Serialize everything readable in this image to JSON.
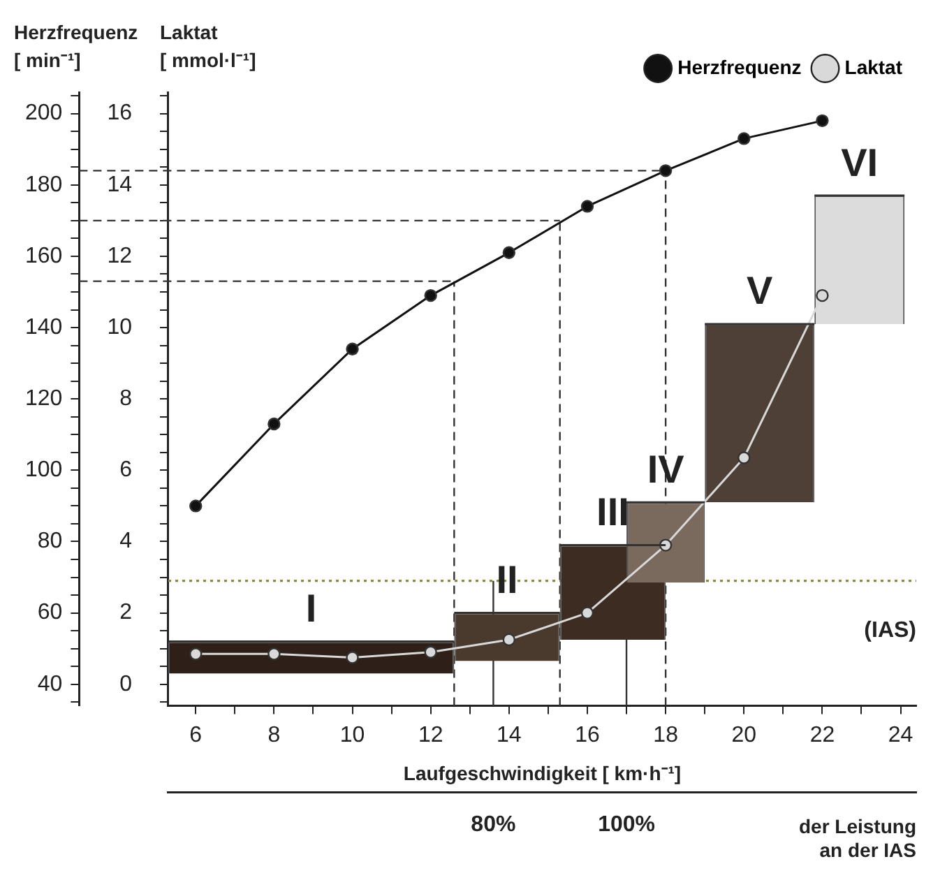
{
  "chart_data": {
    "type": "line",
    "xlabel": "Laufgeschwindigkeit [ km·h⁻¹]",
    "ylabel": "Herzfrequenz\n[ min⁻¹]",
    "y2label": "Laktat\n[ mmol·l⁻¹]",
    "x2label": "der Leistung\nan der IAS",
    "xlim": [
      5.3,
      24.4
    ],
    "ylim": [
      34,
      206
    ],
    "y2lim": [
      -0.6,
      16.6
    ],
    "x2lim": [
      31.2,
      143.5
    ],
    "xticks": [
      6,
      {
        "value": 7,
        "label": null
      },
      8,
      {
        "value": 9,
        "label": null
      },
      10,
      {
        "value": 11,
        "label": null
      },
      12,
      {
        "value": 13,
        "label": null
      },
      14,
      {
        "value": 15,
        "label": null
      },
      16,
      {
        "value": 17,
        "label": null
      },
      18,
      {
        "value": 19,
        "label": null
      },
      20,
      {
        "value": 21,
        "label": null
      },
      22,
      {
        "value": 23,
        "label": null
      },
      24
    ],
    "x2ticks": [
      {
        "value": 80,
        "label": "80%"
      },
      {
        "value": 100,
        "label": "100%"
      }
    ],
    "yticks": [
      {
        "value": 35,
        "label": null
      },
      40,
      {
        "value": 45,
        "label": null
      },
      {
        "value": 50,
        "label": null
      },
      {
        "value": 55,
        "label": null
      },
      60,
      {
        "value": 65,
        "label": null
      },
      {
        "value": 70,
        "label": null
      },
      {
        "value": 75,
        "label": null
      },
      80,
      {
        "value": 85,
        "label": null
      },
      {
        "value": 90,
        "label": null
      },
      {
        "value": 95,
        "label": null
      },
      100,
      {
        "value": 105,
        "label": null
      },
      {
        "value": 110,
        "label": null
      },
      {
        "value": 115,
        "label": null
      },
      120,
      {
        "value": 125,
        "label": null
      },
      {
        "value": 130,
        "label": null
      },
      {
        "value": 135,
        "label": null
      },
      140,
      {
        "value": 145,
        "label": null
      },
      {
        "value": 150,
        "label": null
      },
      {
        "value": 155,
        "label": null
      },
      160,
      {
        "value": 165,
        "label": null
      },
      {
        "value": 170,
        "label": null
      },
      {
        "value": 175,
        "label": null
      },
      180,
      {
        "value": 185,
        "label": null
      },
      {
        "value": 190,
        "label": null
      },
      {
        "value": 195,
        "label": null
      },
      200,
      {
        "value": 205,
        "label": null
      }
    ],
    "y2ticks": [
      {
        "value": -0.5,
        "label": null
      },
      0,
      {
        "value": 0.5,
        "label": null
      },
      {
        "value": 1,
        "label": null
      },
      {
        "value": 1.5,
        "label": null
      },
      2,
      {
        "value": 2.5,
        "label": null
      },
      {
        "value": 3,
        "label": null
      },
      {
        "value": 3.5,
        "label": null
      },
      4,
      {
        "value": 4.5,
        "label": null
      },
      {
        "value": 5,
        "label": null
      },
      {
        "value": 5.5,
        "label": null
      },
      6,
      {
        "value": 6.5,
        "label": null
      },
      {
        "value": 7,
        "label": null
      },
      {
        "value": 7.5,
        "label": null
      },
      8,
      {
        "value": 8.5,
        "label": null
      },
      {
        "value": 9,
        "label": null
      },
      {
        "value": 9.5,
        "label": null
      },
      10,
      {
        "value": 10.5,
        "label": null
      },
      {
        "value": 11,
        "label": null
      },
      {
        "value": 11.5,
        "label": null
      },
      12,
      {
        "value": 12.5,
        "label": null
      },
      {
        "value": 13,
        "label": null
      },
      {
        "value": 13.5,
        "label": null
      },
      14,
      {
        "value": 14.5,
        "label": null
      },
      {
        "value": 15,
        "label": null
      },
      {
        "value": 15.5,
        "label": null
      },
      16,
      {
        "value": 16.5,
        "label": null
      }
    ],
    "series": [
      {
        "type": "bar",
        "axis": "y2",
        "x": [
          8.95,
          13.95,
          16.65,
          18.0,
          20.4,
          22.95
        ],
        "xerrors": [
          3.65,
          1.35,
          1.35,
          1.0,
          1.4,
          1.15
        ],
        "base": [
          0.3,
          0.65,
          1.25,
          2.85,
          5.1,
          10.1
        ],
        "values": [
          0.9,
          1.35,
          2.65,
          2.25,
          5.0,
          3.6
        ],
        "colors": [
          "#2e2018",
          "#4a3a2e",
          "#3c2c22",
          "#7a6a5e",
          "#4e4036",
          "#dcdcdc"
        ]
      },
      {
        "name": "Herzfrequenz",
        "color": "#111111",
        "x": [
          6,
          8,
          10,
          12,
          14,
          16,
          18,
          20,
          22
        ],
        "values": [
          90,
          113,
          134,
          149,
          161,
          174,
          184,
          193,
          198
        ]
      },
      {
        "name": "Laktat",
        "axis": "y2",
        "color": "#d9d9d9",
        "x": [
          6,
          8,
          10,
          12,
          14,
          16,
          18,
          20,
          22
        ],
        "values": [
          0.85,
          0.85,
          0.75,
          0.9,
          1.25,
          2.0,
          3.9,
          6.35,
          10.9
        ]
      }
    ],
    "ref_lines": [
      {
        "axis": "y",
        "value": 153,
        "line_style": "dashed",
        "color": "#333333"
      },
      {
        "axis": "y",
        "value": 170,
        "line_style": "dashed",
        "color": "#333333"
      },
      {
        "axis": "y",
        "value": 184,
        "line_style": "dashed",
        "color": "#333333"
      },
      {
        "axis": "x",
        "value": 12.6,
        "line_style": "dashed",
        "color": "#333333"
      },
      {
        "axis": "x",
        "value": 15.3,
        "line_style": "dashed",
        "color": "#333333"
      },
      {
        "axis": "x",
        "value": 18.0,
        "line_style": "dashed",
        "color": "#333333"
      },
      {
        "axis": "y2",
        "value": 2.9,
        "label": "(IAS)",
        "line_style": "dotted",
        "color": "#8a8a40"
      },
      {
        "axis": "x",
        "value": 13.6,
        "line_style": "solid",
        "color": "#333333"
      },
      {
        "axis": "x",
        "value": 17.0,
        "line_style": "solid",
        "color": "#333333"
      }
    ],
    "annotations": [
      "I",
      "II",
      "III",
      "IV",
      "V",
      "VI"
    ],
    "legend": "top right",
    "marker": "circle"
  }
}
